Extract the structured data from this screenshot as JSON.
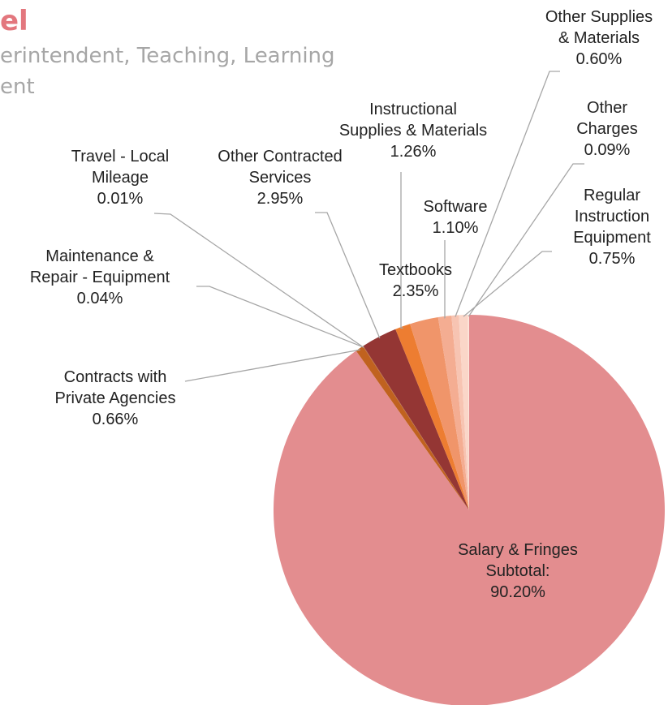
{
  "header": {
    "title": "el",
    "subtitle_lines": [
      "erintendent, Teaching, Learning",
      "ent"
    ]
  },
  "chart_data": {
    "type": "pie",
    "categories": [
      "Salary & Fringes Subtotal:",
      "Contracts with Private Agencies",
      "Travel - Local Mileage",
      "Maintenance & Repair - Equipment",
      "Other Contracted Services",
      "Instructional Supplies & Materials",
      "Textbooks",
      "Software",
      "Other Supplies & Materials",
      "Regular Instruction Equipment",
      "Other Charges"
    ],
    "values": [
      90.2,
      0.66,
      0.01,
      0.04,
      2.95,
      1.26,
      2.35,
      1.1,
      0.6,
      0.75,
      0.09
    ],
    "value_labels": [
      "90.20%",
      "0.66%",
      "0.01%",
      "0.04%",
      "2.95%",
      "1.26%",
      "2.35%",
      "1.10%",
      "0.60%",
      "0.75%",
      "0.09%"
    ],
    "colors": [
      "#e38d8f",
      "#c0621f",
      "#a04a1c",
      "#b35a28",
      "#943634",
      "#ed7d31",
      "#f0956a",
      "#f4ad92",
      "#f7c4b2",
      "#fad6c8",
      "#fde6dc"
    ]
  }
}
